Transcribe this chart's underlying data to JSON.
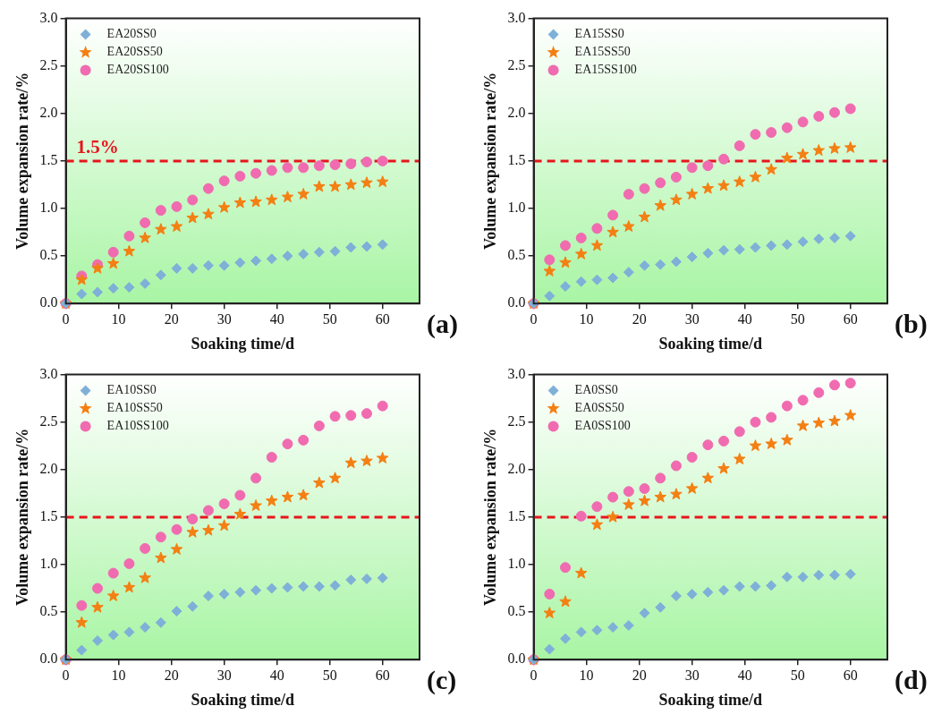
{
  "chart_data": [
    {
      "type": "scatter",
      "xlabel": "Soaking time/d",
      "ylabel": "Volume expansion rate/%",
      "xlim": [
        0,
        67
      ],
      "xticks": [
        0,
        10,
        20,
        30,
        40,
        50,
        60
      ],
      "ylim": [
        0,
        3
      ],
      "yticks": [
        {
          "value": 0,
          "label": "0.0"
        },
        {
          "value": 0.5,
          "label": "0.5"
        },
        {
          "value": 1,
          "label": "1.0"
        },
        {
          "value": 1.5,
          "label": "1.5"
        },
        {
          "value": 2,
          "label": "2.0"
        },
        {
          "value": 2.5,
          "label": "2.5"
        },
        {
          "value": 3,
          "label": "3.0"
        }
      ],
      "legend": "top left",
      "x": [
        0,
        3,
        6,
        9,
        12,
        15,
        18,
        21,
        24,
        27,
        30,
        33,
        36,
        39,
        42,
        45,
        48,
        51,
        54,
        57,
        60
      ],
      "series": [
        {
          "name": "EA20SS0",
          "color": "#7fb0d8",
          "marker": "diamond",
          "values": [
            0,
            0.1,
            0.12,
            0.16,
            0.17,
            0.21,
            0.3,
            0.37,
            0.37,
            0.4,
            0.4,
            0.43,
            0.45,
            0.47,
            0.5,
            0.52,
            0.54,
            0.55,
            0.59,
            0.6,
            0.62
          ]
        },
        {
          "name": "EA20SS50",
          "color": "#f47f12",
          "marker": "star",
          "values": [
            0,
            0.25,
            0.37,
            0.42,
            0.55,
            0.69,
            0.78,
            0.81,
            0.9,
            0.94,
            1.01,
            1.06,
            1.07,
            1.09,
            1.12,
            1.15,
            1.23,
            1.23,
            1.25,
            1.27,
            1.28
          ]
        },
        {
          "name": "EA20SS100",
          "color": "#f06bb0",
          "marker": "circle",
          "values": [
            0,
            0.29,
            0.41,
            0.54,
            0.71,
            0.85,
            0.98,
            1.02,
            1.09,
            1.21,
            1.29,
            1.34,
            1.37,
            1.4,
            1.43,
            1.43,
            1.45,
            1.46,
            1.47,
            1.49,
            1.5
          ]
        }
      ],
      "ref_lines": [
        {
          "axis": "y",
          "value": 1.5,
          "label": "1.5%",
          "color": "#e8141c",
          "line_style": "dashed"
        }
      ],
      "annotations": [
        "(a)"
      ]
    },
    {
      "type": "scatter",
      "xlabel": "Soaking time/d",
      "ylabel": "Volume expansion rate/%",
      "xlim": [
        0,
        67
      ],
      "xticks": [
        0,
        10,
        20,
        30,
        40,
        50,
        60
      ],
      "ylim": [
        0,
        3
      ],
      "yticks": [
        {
          "value": 0,
          "label": "0.0"
        },
        {
          "value": 0.5,
          "label": "0.5"
        },
        {
          "value": 1,
          "label": "1.0"
        },
        {
          "value": 1.5,
          "label": "1.5"
        },
        {
          "value": 2,
          "label": "2.0"
        },
        {
          "value": 2.5,
          "label": "2.5"
        },
        {
          "value": 3,
          "label": "3.0"
        }
      ],
      "legend": "top left",
      "x": [
        0,
        3,
        6,
        9,
        12,
        15,
        18,
        21,
        24,
        27,
        30,
        33,
        36,
        39,
        42,
        45,
        48,
        51,
        54,
        57,
        60
      ],
      "series": [
        {
          "name": "EA15SS0",
          "color": "#7fb0d8",
          "marker": "diamond",
          "values": [
            0,
            0.08,
            0.18,
            0.23,
            0.25,
            0.27,
            0.33,
            0.4,
            0.41,
            0.44,
            0.49,
            0.53,
            0.56,
            0.57,
            0.59,
            0.61,
            0.62,
            0.65,
            0.68,
            0.69,
            0.71
          ]
        },
        {
          "name": "EA15SS50",
          "color": "#f47f12",
          "marker": "star",
          "values": [
            0,
            0.34,
            0.43,
            0.52,
            0.61,
            0.75,
            0.81,
            0.91,
            1.03,
            1.09,
            1.15,
            1.21,
            1.24,
            1.28,
            1.33,
            1.41,
            1.53,
            1.57,
            1.61,
            1.63,
            1.64
          ]
        },
        {
          "name": "EA15SS100",
          "color": "#f06bb0",
          "marker": "circle",
          "values": [
            0,
            0.46,
            0.61,
            0.69,
            0.79,
            0.93,
            1.15,
            1.21,
            1.27,
            1.33,
            1.43,
            1.45,
            1.52,
            1.66,
            1.78,
            1.8,
            1.85,
            1.91,
            1.97,
            2.01,
            2.05
          ]
        }
      ],
      "ref_lines": [
        {
          "axis": "y",
          "value": 1.5,
          "color": "#e8141c",
          "line_style": "dashed"
        }
      ],
      "annotations": [
        "(b)"
      ]
    },
    {
      "type": "scatter",
      "xlabel": "Soaking time/d",
      "ylabel": "Volume expansion rate/%",
      "xlim": [
        0,
        67
      ],
      "xticks": [
        0,
        10,
        20,
        30,
        40,
        50,
        60
      ],
      "ylim": [
        0,
        3
      ],
      "yticks": [
        {
          "value": 0,
          "label": "0.0"
        },
        {
          "value": 0.5,
          "label": "0.5"
        },
        {
          "value": 1,
          "label": "1.0"
        },
        {
          "value": 1.5,
          "label": "1.5"
        },
        {
          "value": 2,
          "label": "2.0"
        },
        {
          "value": 2.5,
          "label": "2.5"
        },
        {
          "value": 3,
          "label": "3.0"
        }
      ],
      "legend": "top left",
      "x": [
        0,
        3,
        6,
        9,
        12,
        15,
        18,
        21,
        24,
        27,
        30,
        33,
        36,
        39,
        42,
        45,
        48,
        51,
        54,
        57,
        60
      ],
      "series": [
        {
          "name": "EA10SS0",
          "color": "#7fb0d8",
          "marker": "diamond",
          "values": [
            0,
            0.1,
            0.2,
            0.26,
            0.29,
            0.34,
            0.39,
            0.51,
            0.56,
            0.67,
            0.69,
            0.71,
            0.73,
            0.75,
            0.76,
            0.77,
            0.77,
            0.78,
            0.84,
            0.85,
            0.86
          ]
        },
        {
          "name": "EA10SS50",
          "color": "#f47f12",
          "marker": "star",
          "values": [
            0,
            0.39,
            0.55,
            0.67,
            0.76,
            0.86,
            1.07,
            1.16,
            1.34,
            1.36,
            1.41,
            1.53,
            1.62,
            1.67,
            1.71,
            1.73,
            1.86,
            1.91,
            2.07,
            2.09,
            2.12
          ]
        },
        {
          "name": "EA10SS100",
          "color": "#f06bb0",
          "marker": "circle",
          "values": [
            0,
            0.57,
            0.75,
            0.91,
            1.01,
            1.17,
            1.29,
            1.37,
            1.48,
            1.57,
            1.64,
            1.73,
            1.91,
            2.13,
            2.27,
            2.31,
            2.46,
            2.56,
            2.57,
            2.59,
            2.67
          ]
        }
      ],
      "ref_lines": [
        {
          "axis": "y",
          "value": 1.5,
          "color": "#e8141c",
          "line_style": "dashed"
        }
      ],
      "annotations": [
        "(c)"
      ]
    },
    {
      "type": "scatter",
      "xlabel": "Soaking time/d",
      "ylabel": "Volume expansion rate/%",
      "xlim": [
        0,
        67
      ],
      "xticks": [
        0,
        10,
        20,
        30,
        40,
        50,
        60
      ],
      "ylim": [
        0,
        3
      ],
      "yticks": [
        {
          "value": 0,
          "label": "0.0"
        },
        {
          "value": 0.5,
          "label": "0.5"
        },
        {
          "value": 1,
          "label": "1.0"
        },
        {
          "value": 1.5,
          "label": "1.5"
        },
        {
          "value": 2,
          "label": "2.0"
        },
        {
          "value": 2.5,
          "label": "2.5"
        },
        {
          "value": 3,
          "label": "3.0"
        }
      ],
      "legend": "top left",
      "x": [
        0,
        3,
        6,
        9,
        12,
        15,
        18,
        21,
        24,
        27,
        30,
        33,
        36,
        39,
        42,
        45,
        48,
        51,
        54,
        57,
        60
      ],
      "series": [
        {
          "name": "EA0SS0",
          "color": "#7fb0d8",
          "marker": "diamond",
          "values": [
            0,
            0.11,
            0.22,
            0.29,
            0.31,
            0.34,
            0.36,
            0.49,
            0.55,
            0.67,
            0.69,
            0.71,
            0.73,
            0.77,
            0.77,
            0.78,
            0.87,
            0.87,
            0.89,
            0.89,
            0.9
          ]
        },
        {
          "name": "EA0SS50",
          "color": "#f47f12",
          "marker": "star",
          "values": [
            0,
            0.49,
            0.61,
            0.91,
            1.42,
            1.5,
            1.63,
            1.67,
            1.71,
            1.74,
            1.8,
            1.91,
            2.01,
            2.11,
            2.25,
            2.27,
            2.31,
            2.46,
            2.49,
            2.51,
            2.57
          ]
        },
        {
          "name": "EA0SS100",
          "color": "#f06bb0",
          "marker": "circle",
          "values": [
            0,
            0.69,
            0.97,
            1.51,
            1.61,
            1.71,
            1.77,
            1.8,
            1.91,
            2.04,
            2.13,
            2.26,
            2.3,
            2.4,
            2.5,
            2.55,
            2.67,
            2.73,
            2.81,
            2.89,
            2.91
          ]
        }
      ],
      "ref_lines": [
        {
          "axis": "y",
          "value": 1.5,
          "color": "#e8141c",
          "line_style": "dashed"
        }
      ],
      "annotations": [
        "(d)"
      ]
    }
  ]
}
